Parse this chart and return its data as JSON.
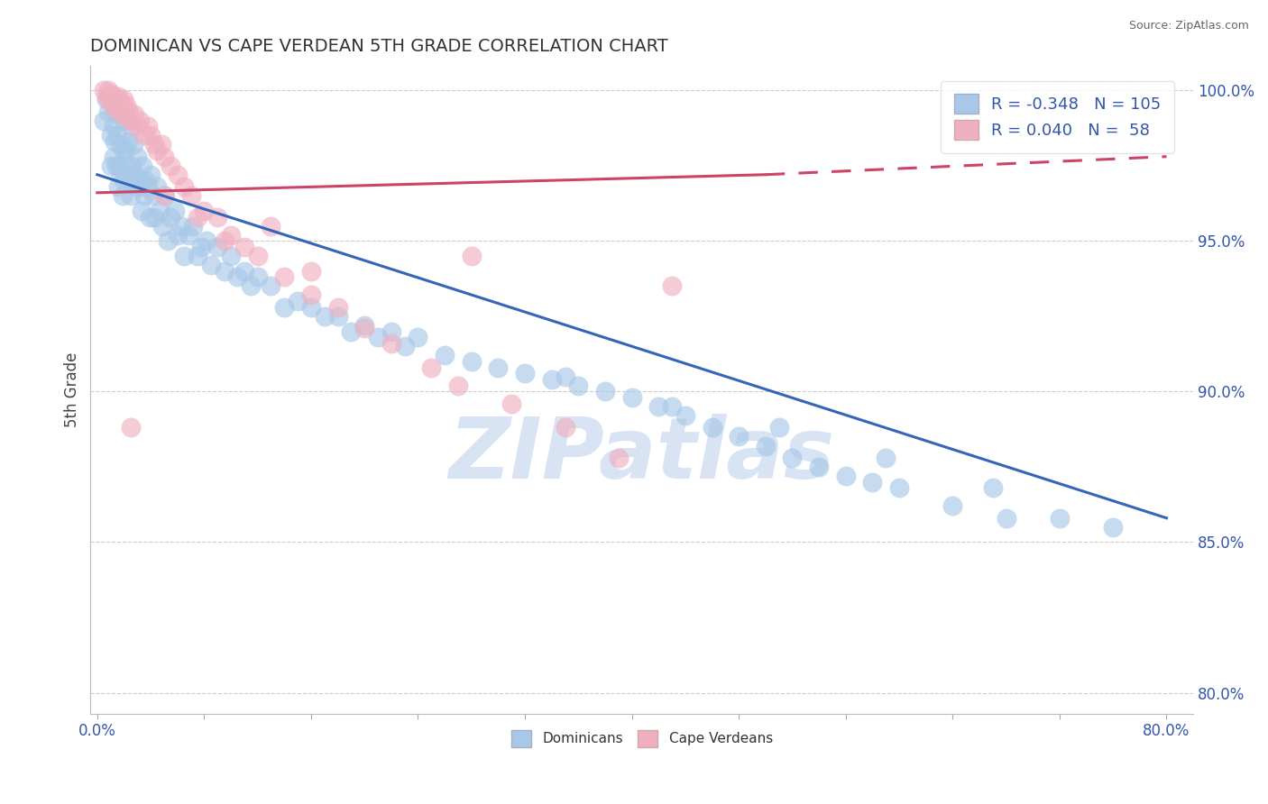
{
  "title": "DOMINICAN VS CAPE VERDEAN 5TH GRADE CORRELATION CHART",
  "source": "Source: ZipAtlas.com",
  "ylabel": "5th Grade",
  "xlabel_ticks": [
    "0.0%",
    "",
    "",
    "",
    "",
    "",
    "",
    "",
    "",
    "",
    "80.0%"
  ],
  "xtick_vals": [
    0.0,
    0.08,
    0.16,
    0.24,
    0.32,
    0.4,
    0.48,
    0.56,
    0.64,
    0.72,
    0.8
  ],
  "ylabel_ticks": [
    "80.0%",
    "85.0%",
    "90.0%",
    "95.0%",
    "100.0%"
  ],
  "ytick_vals": [
    0.8,
    0.85,
    0.9,
    0.95,
    1.0
  ],
  "xlim": [
    -0.005,
    0.82
  ],
  "ylim": [
    0.793,
    1.008
  ],
  "blue_R": -0.348,
  "blue_N": 105,
  "pink_R": 0.04,
  "pink_N": 58,
  "blue_color": "#a8c8e8",
  "pink_color": "#f0b0c0",
  "blue_line_color": "#3366bb",
  "pink_line_color": "#cc4466",
  "title_color": "#333333",
  "watermark_text": "ZIPatlas",
  "watermark_color": "#c8d8ee",
  "legend_dominicans": "Dominicans",
  "legend_cape_verdeans": "Cape Verdeans",
  "blue_line_x0": 0.0,
  "blue_line_x1": 0.8,
  "blue_line_y0": 0.972,
  "blue_line_y1": 0.858,
  "pink_line_x0": 0.0,
  "pink_line_x1": 0.5,
  "pink_line_x2": 0.8,
  "pink_line_y0": 0.966,
  "pink_line_y1": 0.972,
  "pink_line_y2": 0.978,
  "blue_scatter_x": [
    0.005,
    0.007,
    0.008,
    0.01,
    0.01,
    0.012,
    0.012,
    0.013,
    0.013,
    0.014,
    0.015,
    0.015,
    0.016,
    0.016,
    0.017,
    0.018,
    0.018,
    0.019,
    0.02,
    0.02,
    0.02,
    0.021,
    0.022,
    0.022,
    0.023,
    0.024,
    0.025,
    0.025,
    0.026,
    0.027,
    0.028,
    0.029,
    0.03,
    0.031,
    0.032,
    0.033,
    0.034,
    0.035,
    0.036,
    0.038,
    0.039,
    0.04,
    0.042,
    0.043,
    0.045,
    0.047,
    0.049,
    0.051,
    0.053,
    0.055,
    0.058,
    0.06,
    0.063,
    0.065,
    0.068,
    0.072,
    0.075,
    0.078,
    0.082,
    0.085,
    0.09,
    0.095,
    0.1,
    0.105,
    0.11,
    0.115,
    0.12,
    0.13,
    0.14,
    0.15,
    0.16,
    0.17,
    0.18,
    0.19,
    0.2,
    0.21,
    0.22,
    0.23,
    0.24,
    0.26,
    0.28,
    0.3,
    0.32,
    0.34,
    0.36,
    0.38,
    0.4,
    0.42,
    0.44,
    0.46,
    0.48,
    0.5,
    0.52,
    0.54,
    0.56,
    0.58,
    0.6,
    0.64,
    0.68,
    0.72,
    0.76,
    0.35,
    0.43,
    0.51,
    0.59,
    0.67
  ],
  "blue_scatter_y": [
    0.99,
    0.997,
    0.993,
    0.985,
    0.975,
    0.988,
    0.978,
    0.993,
    0.983,
    0.975,
    0.995,
    0.985,
    0.975,
    0.968,
    0.992,
    0.982,
    0.972,
    0.965,
    0.99,
    0.98,
    0.97,
    0.98,
    0.992,
    0.975,
    0.983,
    0.972,
    0.988,
    0.965,
    0.975,
    0.982,
    0.972,
    0.968,
    0.978,
    0.97,
    0.968,
    0.96,
    0.975,
    0.965,
    0.97,
    0.968,
    0.958,
    0.972,
    0.965,
    0.958,
    0.968,
    0.96,
    0.955,
    0.965,
    0.95,
    0.958,
    0.96,
    0.952,
    0.955,
    0.945,
    0.952,
    0.955,
    0.945,
    0.948,
    0.95,
    0.942,
    0.948,
    0.94,
    0.945,
    0.938,
    0.94,
    0.935,
    0.938,
    0.935,
    0.928,
    0.93,
    0.928,
    0.925,
    0.925,
    0.92,
    0.922,
    0.918,
    0.92,
    0.915,
    0.918,
    0.912,
    0.91,
    0.908,
    0.906,
    0.904,
    0.902,
    0.9,
    0.898,
    0.895,
    0.892,
    0.888,
    0.885,
    0.882,
    0.878,
    0.875,
    0.872,
    0.87,
    0.868,
    0.862,
    0.858,
    0.858,
    0.855,
    0.905,
    0.895,
    0.888,
    0.878,
    0.868
  ],
  "pink_scatter_x": [
    0.005,
    0.007,
    0.008,
    0.009,
    0.01,
    0.011,
    0.012,
    0.013,
    0.014,
    0.015,
    0.016,
    0.017,
    0.018,
    0.019,
    0.02,
    0.02,
    0.021,
    0.022,
    0.023,
    0.024,
    0.025,
    0.028,
    0.03,
    0.032,
    0.035,
    0.038,
    0.04,
    0.043,
    0.045,
    0.048,
    0.05,
    0.055,
    0.06,
    0.065,
    0.07,
    0.08,
    0.09,
    0.1,
    0.11,
    0.12,
    0.14,
    0.16,
    0.18,
    0.2,
    0.22,
    0.25,
    0.27,
    0.31,
    0.35,
    0.39,
    0.05,
    0.13,
    0.28,
    0.43,
    0.025,
    0.075,
    0.095,
    0.16
  ],
  "pink_scatter_y": [
    1.0,
    0.998,
    1.0,
    0.997,
    0.999,
    0.996,
    0.998,
    0.994,
    0.997,
    0.996,
    0.998,
    0.994,
    0.996,
    0.992,
    0.994,
    0.997,
    0.993,
    0.995,
    0.991,
    0.993,
    0.99,
    0.992,
    0.988,
    0.99,
    0.985,
    0.988,
    0.985,
    0.982,
    0.98,
    0.982,
    0.978,
    0.975,
    0.972,
    0.968,
    0.965,
    0.96,
    0.958,
    0.952,
    0.948,
    0.945,
    0.938,
    0.932,
    0.928,
    0.921,
    0.916,
    0.908,
    0.902,
    0.896,
    0.888,
    0.878,
    0.965,
    0.955,
    0.945,
    0.935,
    0.888,
    0.958,
    0.95,
    0.94
  ]
}
